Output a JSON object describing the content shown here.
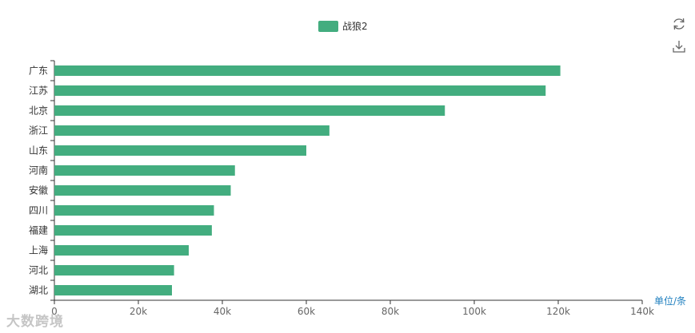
{
  "toolbox": {
    "refresh_icon": "refresh-icon",
    "download_icon": "download-icon"
  },
  "watermark": {
    "text": "大数跨境"
  },
  "chart_data": {
    "type": "bar",
    "orientation": "horizontal",
    "legend": {
      "position": "top-center",
      "entries": [
        "战狼2"
      ]
    },
    "series": [
      {
        "name": "战狼2",
        "color": "#43ad7f",
        "values": [
          120500,
          117000,
          93000,
          65500,
          60000,
          43000,
          42000,
          38000,
          37500,
          32000,
          28500,
          28000
        ]
      }
    ],
    "categories": [
      "广东",
      "江苏",
      "北京",
      "浙江",
      "山东",
      "河南",
      "安徽",
      "四川",
      "福建",
      "上海",
      "河北",
      "湖北"
    ],
    "xlim": [
      0,
      140000
    ],
    "xticks": [
      0,
      20000,
      40000,
      60000,
      80000,
      100000,
      120000,
      140000
    ],
    "xtick_labels": [
      "0",
      "20k",
      "40k",
      "60k",
      "80k",
      "100k",
      "120k",
      "140k"
    ],
    "unit_label": "单位/条",
    "grid": false,
    "title": "",
    "xlabel": "",
    "ylabel": ""
  }
}
